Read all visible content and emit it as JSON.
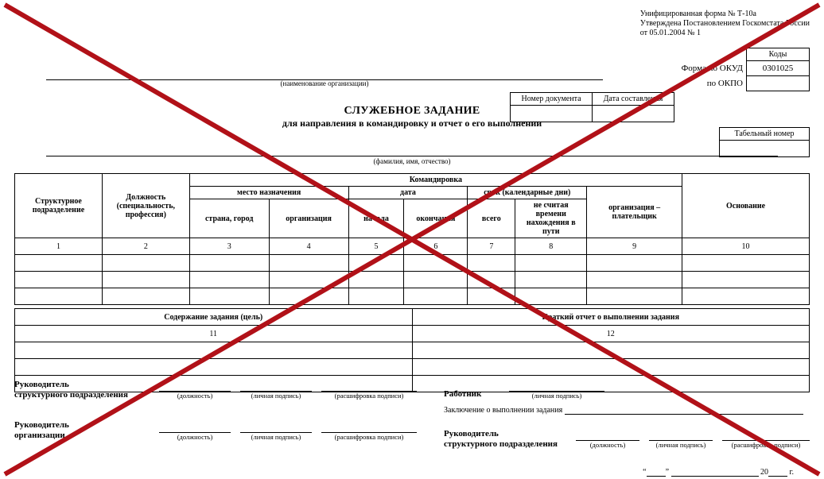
{
  "header_notes": {
    "line1": "Унифицированная форма № Т-10а",
    "line2": "Утверждена Постановлением Госкомстата России",
    "line3": "от 05.01.2004 № 1"
  },
  "okud": {
    "codes_header": "Коды",
    "row1_label": "Форма по ОКУД",
    "row1_value": "0301025",
    "row2_label": "по ОКПО",
    "row2_value": ""
  },
  "org": {
    "caption": "(наименование организации)"
  },
  "docnum": {
    "col1": "Номер документа",
    "col2": "Дата составления"
  },
  "title": {
    "main": "СЛУЖЕБНОЕ ЗАДАНИЕ",
    "sub": "для направления в командировку и отчет о его выполнении"
  },
  "tabnum": {
    "header": "Табельный номер"
  },
  "fio_caption": "(фамилия, имя, отчество)",
  "table1": {
    "c1": "Структурное подразделение",
    "c2": "Должность (специальность, профессия)",
    "trip_header": "Командировка",
    "dest_header": "место назначения",
    "dest_sub1": "страна, город",
    "dest_sub2": "организация",
    "date_header": "дата",
    "date_sub1": "начала",
    "date_sub2": "окончания",
    "term_header": "срок (календарные дни)",
    "term_sub1": "всего",
    "term_sub2": "не считая времени нахождения в пути",
    "payer": "организация – плательщик",
    "basis": "Основание",
    "nums": [
      "1",
      "2",
      "3",
      "4",
      "5",
      "6",
      "7",
      "8",
      "9",
      "10"
    ]
  },
  "table2": {
    "h1": "Содержание задания (цель)",
    "h2": "Краткий отчет о выполнении задания",
    "n1": "11",
    "n2": "12"
  },
  "signatures": {
    "head_dept": "Руководитель\nструктурного подразделения",
    "worker": "Работник",
    "conclusion": "Заключение о выполнении задания",
    "head_org": "Руководитель\nорганизации",
    "head_dept2": "Руководитель\nструктурного подразделения",
    "cap_position": "(должность)",
    "cap_sign": "(личная подпись)",
    "cap_decipher": "(расшифровка подписи)",
    "year_suffix": "г."
  },
  "cross_overlay": {
    "stroke": "#b11118",
    "stroke_width": 6
  }
}
